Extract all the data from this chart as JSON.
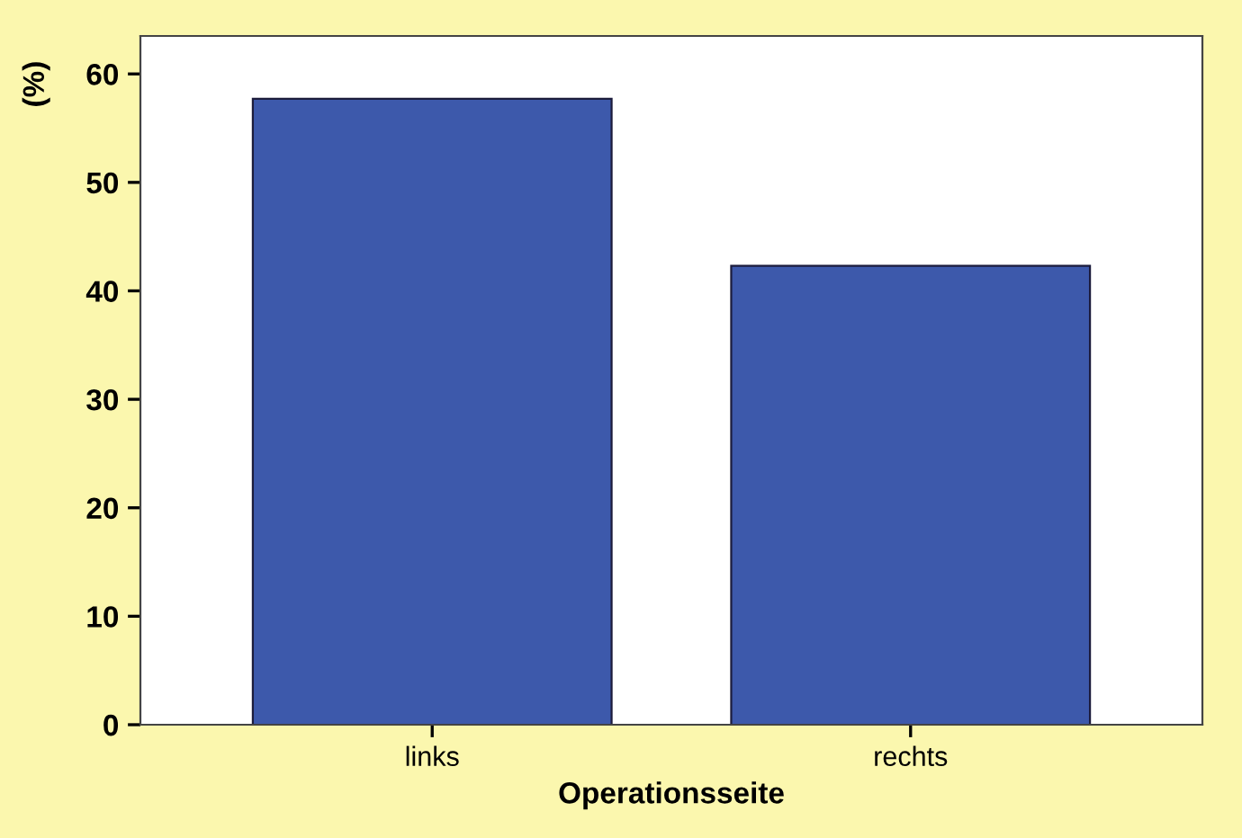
{
  "chart_data": {
    "type": "bar",
    "xlabel": "Operationsseite",
    "ylabel": "(%)",
    "categories": [
      "links",
      "rechts"
    ],
    "series": [
      {
        "color": "#3d59ab",
        "values": [
          57.7,
          42.3
        ]
      }
    ],
    "ylim": [
      0,
      63.5
    ],
    "yticks": [
      0,
      10,
      20,
      30,
      40,
      50,
      60
    ],
    "grid": false,
    "legend": false
  }
}
